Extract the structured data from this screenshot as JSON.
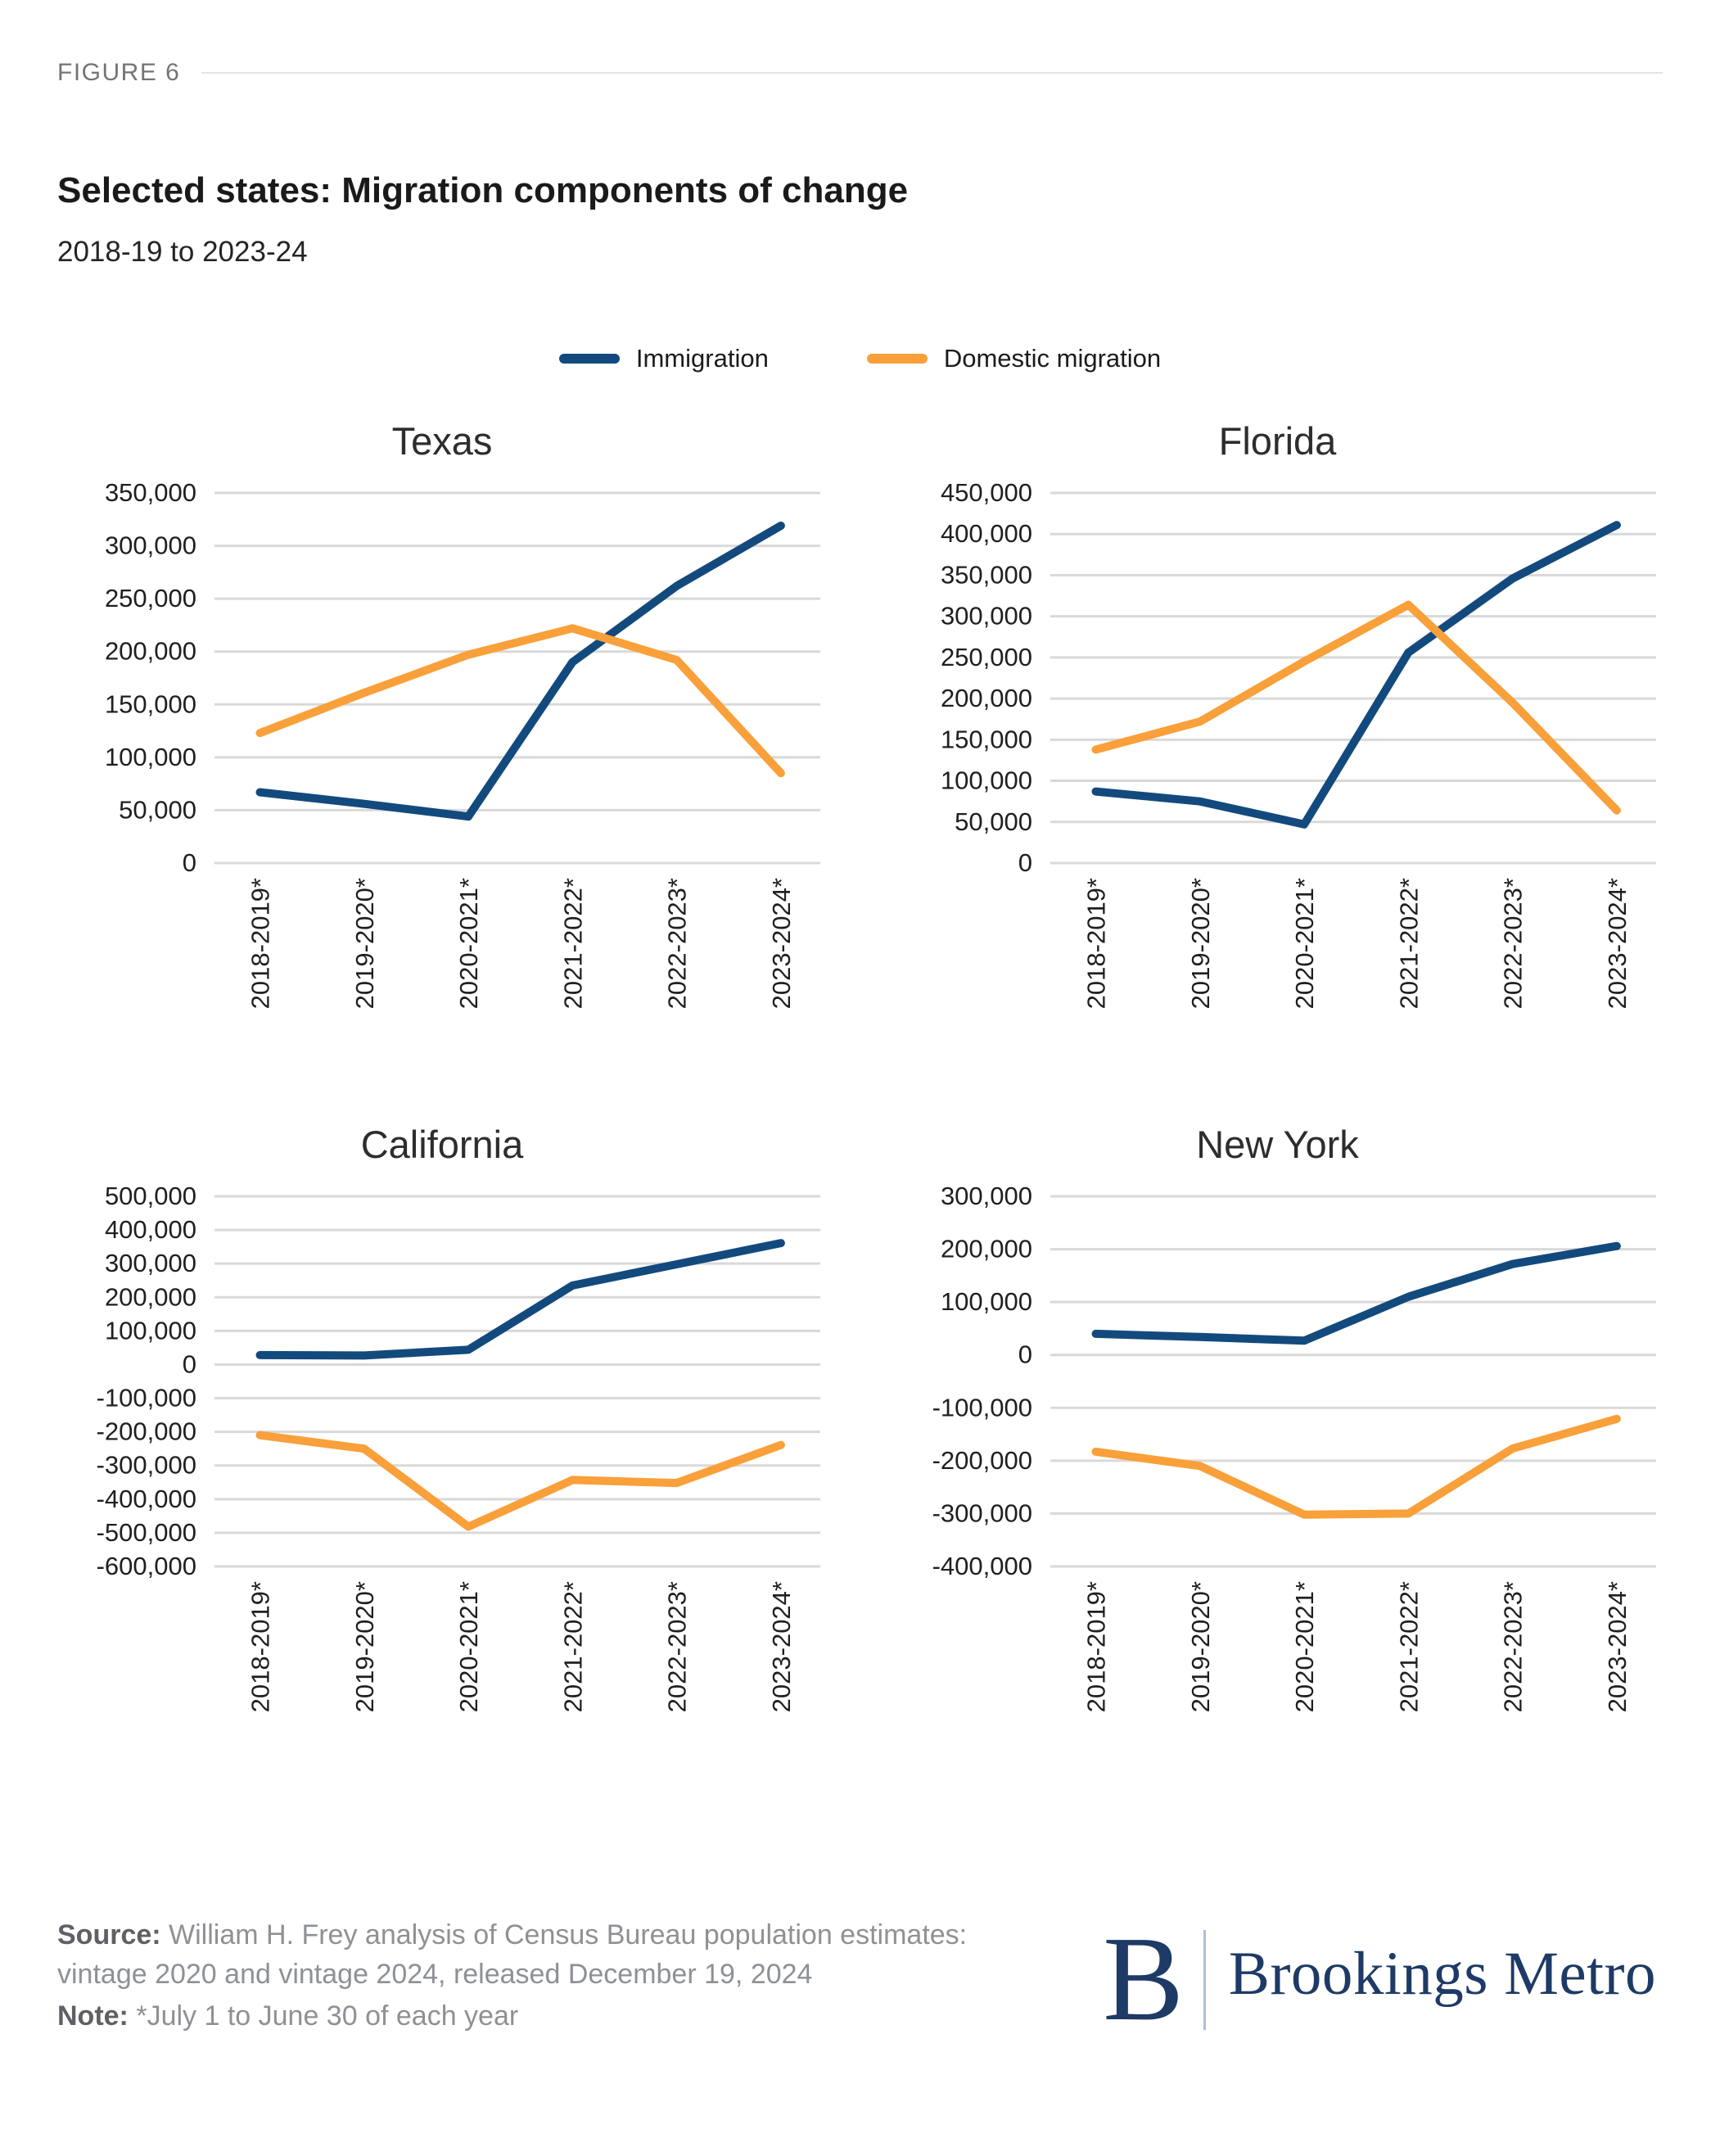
{
  "figure_label": "FIGURE 6",
  "title": "Selected states: Migration components of change",
  "subtitle": "2018-19 to 2023-24",
  "legend": [
    {
      "label": "Immigration",
      "color": "#134A7D"
    },
    {
      "label": "Domestic migration",
      "color": "#F9A03A"
    }
  ],
  "colors": {
    "immigration": "#134A7D",
    "domestic_migration": "#F9A03A",
    "gridline": "#D9D9D9",
    "brand_navy": "#1E3A66"
  },
  "chart_data": [
    {
      "type": "line",
      "title": "Texas",
      "categories": [
        "2018-2019*",
        "2019-2020*",
        "2020-2021*",
        "2021-2022*",
        "2022-2023*",
        "2023-2024*"
      ],
      "ylim": [
        0,
        350000
      ],
      "ystep": 50000,
      "grid": true,
      "legend_position": "top-center-shared",
      "series": [
        {
          "name": "Immigration",
          "values": [
            67000,
            56000,
            44000,
            190000,
            262000,
            319000
          ]
        },
        {
          "name": "Domestic migration",
          "values": [
            123000,
            161000,
            197000,
            222000,
            192000,
            85000
          ]
        }
      ]
    },
    {
      "type": "line",
      "title": "Florida",
      "categories": [
        "2018-2019*",
        "2019-2020*",
        "2020-2021*",
        "2021-2022*",
        "2022-2023*",
        "2023-2024*"
      ],
      "ylim": [
        0,
        450000
      ],
      "ystep": 50000,
      "grid": true,
      "legend_position": "top-center-shared",
      "series": [
        {
          "name": "Immigration",
          "values": [
            87000,
            75000,
            47000,
            256000,
            346000,
            411000
          ]
        },
        {
          "name": "Domestic migration",
          "values": [
            138000,
            172000,
            245000,
            314000,
            195000,
            64000
          ]
        }
      ]
    },
    {
      "type": "line",
      "title": "California",
      "categories": [
        "2018-2019*",
        "2019-2020*",
        "2020-2021*",
        "2021-2022*",
        "2022-2023*",
        "2023-2024*"
      ],
      "ylim": [
        -600000,
        500000
      ],
      "ystep": 100000,
      "grid": true,
      "legend_position": "top-center-shared",
      "series": [
        {
          "name": "Immigration",
          "values": [
            28000,
            27000,
            44000,
            235000,
            298000,
            361000
          ]
        },
        {
          "name": "Domestic migration",
          "values": [
            -210000,
            -250000,
            -482000,
            -343000,
            -352000,
            -239000
          ]
        }
      ]
    },
    {
      "type": "line",
      "title": "New York",
      "categories": [
        "2018-2019*",
        "2019-2020*",
        "2020-2021*",
        "2021-2022*",
        "2022-2023*",
        "2023-2024*"
      ],
      "ylim": [
        -400000,
        300000
      ],
      "ystep": 100000,
      "grid": true,
      "legend_position": "top-center-shared",
      "series": [
        {
          "name": "Immigration",
          "values": [
            40000,
            34000,
            27000,
            110000,
            172000,
            206000
          ]
        },
        {
          "name": "Domestic migration",
          "values": [
            -183000,
            -210000,
            -302000,
            -300000,
            -177000,
            -121000
          ]
        }
      ]
    }
  ],
  "footer": {
    "source_label": "Source:",
    "source_text": " William H. Frey analysis of Census Bureau population estimates: vintage 2020 and vintage 2024, released December 19, 2024",
    "note_label": "Note:",
    "note_text": " *July 1 to June 30 of each year"
  },
  "logo": {
    "monogram": "B",
    "wordmark": "Brookings Metro"
  }
}
